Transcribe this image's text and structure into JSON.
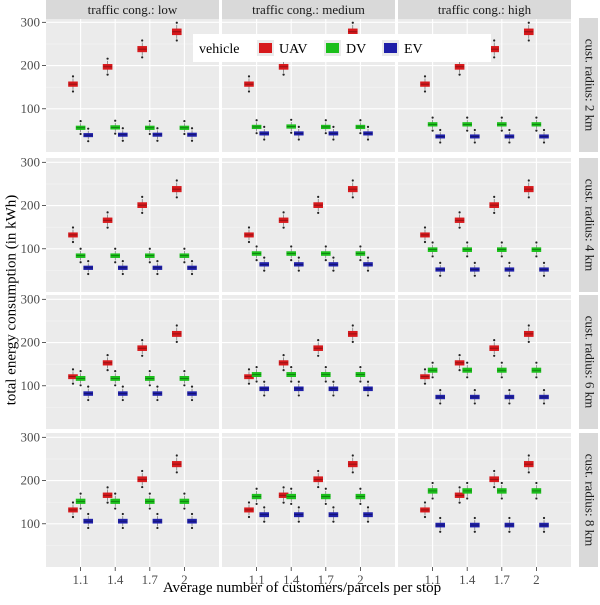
{
  "chart_data": {
    "type": "boxplot",
    "xlabel": "Average number of customers/parcels per stop",
    "ylabel": "total energy consumption (in kWh)",
    "categories": [
      "1.1",
      "1.4",
      "1.7",
      "2"
    ],
    "ylim": [
      0,
      310
    ],
    "yticks": [
      100,
      200,
      300
    ],
    "grid": true,
    "legend": {
      "title": "vehicle",
      "placement": "top, inside first row",
      "items": [
        {
          "name": "UAV",
          "color": "#d7191c"
        },
        {
          "name": "DV",
          "color": "#1bbf1b"
        },
        {
          "name": "EV",
          "color": "#1f1fa8"
        }
      ]
    },
    "facet_cols": [
      "traffic cong.: low",
      "traffic cong.: medium",
      "traffic cong.: high"
    ],
    "facet_rows": [
      "cust. radius: 2 km",
      "cust. radius: 4 km",
      "cust. radius: 6 km",
      "cust. radius: 8 km"
    ],
    "panels": [
      {
        "col": "traffic cong.: low",
        "row": "cust. radius: 2 km",
        "series": [
          {
            "name": "UAV",
            "median": [
              157,
              197,
              238,
              278
            ]
          },
          {
            "name": "DV",
            "median": [
              56,
              57,
              56,
              56
            ]
          },
          {
            "name": "EV",
            "median": [
              39,
              40,
              40,
              40
            ]
          }
        ]
      },
      {
        "col": "traffic cong.: medium",
        "row": "cust. radius: 2 km",
        "series": [
          {
            "name": "UAV",
            "median": [
              157,
              197,
              238,
              278
            ]
          },
          {
            "name": "DV",
            "median": [
              58,
              59,
              58,
              58
            ]
          },
          {
            "name": "EV",
            "median": [
              43,
              43,
              43,
              43
            ]
          }
        ]
      },
      {
        "col": "traffic cong.: high",
        "row": "cust. radius: 2 km",
        "series": [
          {
            "name": "UAV",
            "median": [
              157,
              197,
              238,
              278
            ]
          },
          {
            "name": "DV",
            "median": [
              64,
              64,
              64,
              64
            ]
          },
          {
            "name": "EV",
            "median": [
              36,
              36,
              36,
              36
            ]
          }
        ]
      },
      {
        "col": "traffic cong.: low",
        "row": "cust. radius: 4 km",
        "series": [
          {
            "name": "UAV",
            "median": [
              132,
              166,
              201,
              238
            ]
          },
          {
            "name": "DV",
            "median": [
              84,
              84,
              84,
              84
            ]
          },
          {
            "name": "EV",
            "median": [
              56,
              56,
              56,
              56
            ]
          }
        ]
      },
      {
        "col": "traffic cong.: medium",
        "row": "cust. radius: 4 km",
        "series": [
          {
            "name": "UAV",
            "median": [
              132,
              166,
              201,
              238
            ]
          },
          {
            "name": "DV",
            "median": [
              89,
              89,
              89,
              89
            ]
          },
          {
            "name": "EV",
            "median": [
              64,
              64,
              64,
              64
            ]
          }
        ]
      },
      {
        "col": "traffic cong.: high",
        "row": "cust. radius: 4 km",
        "series": [
          {
            "name": "UAV",
            "median": [
              132,
              166,
              201,
              238
            ]
          },
          {
            "name": "DV",
            "median": [
              98,
              98,
              98,
              98
            ]
          },
          {
            "name": "EV",
            "median": [
              52,
              52,
              52,
              52
            ]
          }
        ]
      },
      {
        "col": "traffic cong.: low",
        "row": "cust. radius: 6 km",
        "series": [
          {
            "name": "UAV",
            "median": [
              121,
              153,
              187,
              220
            ]
          },
          {
            "name": "DV",
            "median": [
              117,
              117,
              117,
              117
            ]
          },
          {
            "name": "EV",
            "median": [
              82,
              82,
              82,
              82
            ]
          }
        ]
      },
      {
        "col": "traffic cong.: medium",
        "row": "cust. radius: 6 km",
        "series": [
          {
            "name": "UAV",
            "median": [
              121,
              153,
              187,
              220
            ]
          },
          {
            "name": "DV",
            "median": [
              126,
              126,
              126,
              126
            ]
          },
          {
            "name": "EV",
            "median": [
              93,
              93,
              93,
              93
            ]
          }
        ]
      },
      {
        "col": "traffic cong.: high",
        "row": "cust. radius: 6 km",
        "series": [
          {
            "name": "UAV",
            "median": [
              121,
              153,
              187,
              220
            ]
          },
          {
            "name": "DV",
            "median": [
              136,
              136,
              136,
              136
            ]
          },
          {
            "name": "EV",
            "median": [
              74,
              74,
              74,
              74
            ]
          }
        ]
      },
      {
        "col": "traffic cong.: low",
        "row": "cust. radius: 8 km",
        "series": [
          {
            "name": "UAV",
            "median": [
              132,
              166,
              203,
              238
            ]
          },
          {
            "name": "DV",
            "median": [
              152,
              152,
              152,
              152
            ]
          },
          {
            "name": "EV",
            "median": [
              106,
              106,
              106,
              106
            ]
          }
        ]
      },
      {
        "col": "traffic cong.: medium",
        "row": "cust. radius: 8 km",
        "series": [
          {
            "name": "UAV",
            "median": [
              132,
              166,
              203,
              238
            ]
          },
          {
            "name": "DV",
            "median": [
              163,
              163,
              163,
              163
            ]
          },
          {
            "name": "EV",
            "median": [
              121,
              121,
              121,
              121
            ]
          }
        ]
      },
      {
        "col": "traffic cong.: high",
        "row": "cust. radius: 8 km",
        "series": [
          {
            "name": "UAV",
            "median": [
              132,
              166,
              203,
              238
            ]
          },
          {
            "name": "DV",
            "median": [
              176,
              176,
              176,
              176
            ]
          },
          {
            "name": "EV",
            "median": [
              97,
              97,
              97,
              97
            ]
          }
        ]
      }
    ]
  }
}
